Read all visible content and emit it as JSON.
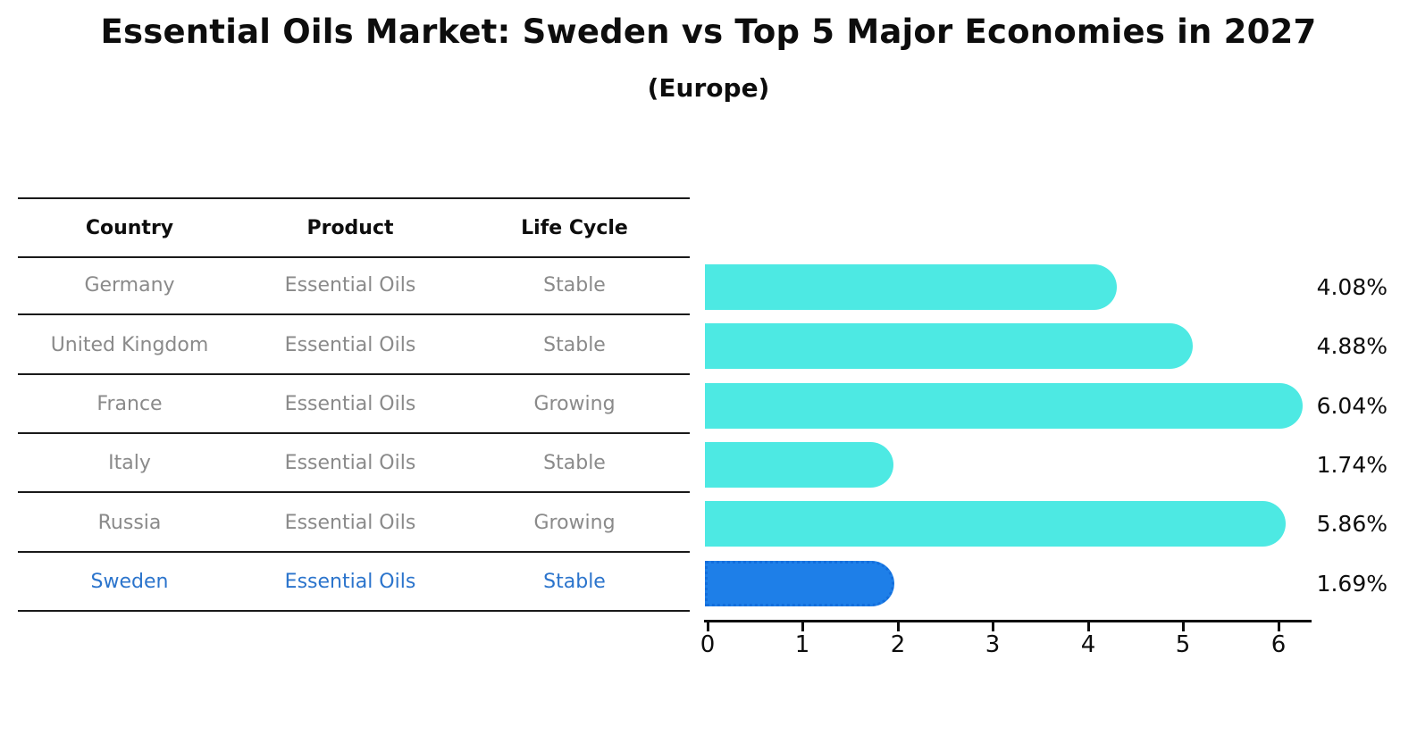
{
  "title": "Essential Oils Market: Sweden vs Top 5 Major Economies in 2027",
  "subtitle": "(Europe)",
  "table": {
    "headers": [
      "Country",
      "Product",
      "Life Cycle"
    ],
    "highlight_text_color": "#2B74CC",
    "rows": [
      {
        "country": "Germany",
        "product": "Essential Oils",
        "life_cycle": "Stable",
        "highlight": false
      },
      {
        "country": "United Kingdom",
        "product": "Essential Oils",
        "life_cycle": "Stable",
        "highlight": false
      },
      {
        "country": "France",
        "product": "Essential Oils",
        "life_cycle": "Growing",
        "highlight": false
      },
      {
        "country": "Italy",
        "product": "Essential Oils",
        "life_cycle": "Stable",
        "highlight": false
      },
      {
        "country": "Russia",
        "product": "Essential Oils",
        "life_cycle": "Growing",
        "highlight": false
      },
      {
        "country": "Sweden",
        "product": "Essential Oils",
        "life_cycle": "Stable",
        "highlight": true
      }
    ]
  },
  "chart_data": {
    "type": "bar",
    "orientation": "horizontal",
    "title": "Essential Oils Market: Sweden vs Top 5 Major Economies in 2027 (Europe)",
    "categories": [
      "Germany",
      "United Kingdom",
      "France",
      "Italy",
      "Russia",
      "Sweden"
    ],
    "values": [
      4.08,
      4.88,
      6.04,
      1.74,
      5.86,
      1.69
    ],
    "value_labels": [
      "4.08%",
      "4.88%",
      "6.04%",
      "1.74%",
      "5.86%",
      "1.69%"
    ],
    "unit": "percent",
    "xlim": [
      0,
      6
    ],
    "x_ticks": [
      0,
      1,
      2,
      3,
      4,
      5,
      6
    ],
    "grid": false,
    "legend": false,
    "bar_color": "#4DE9E3",
    "highlight_color": "#1E7FE8",
    "highlight_index": 5
  }
}
